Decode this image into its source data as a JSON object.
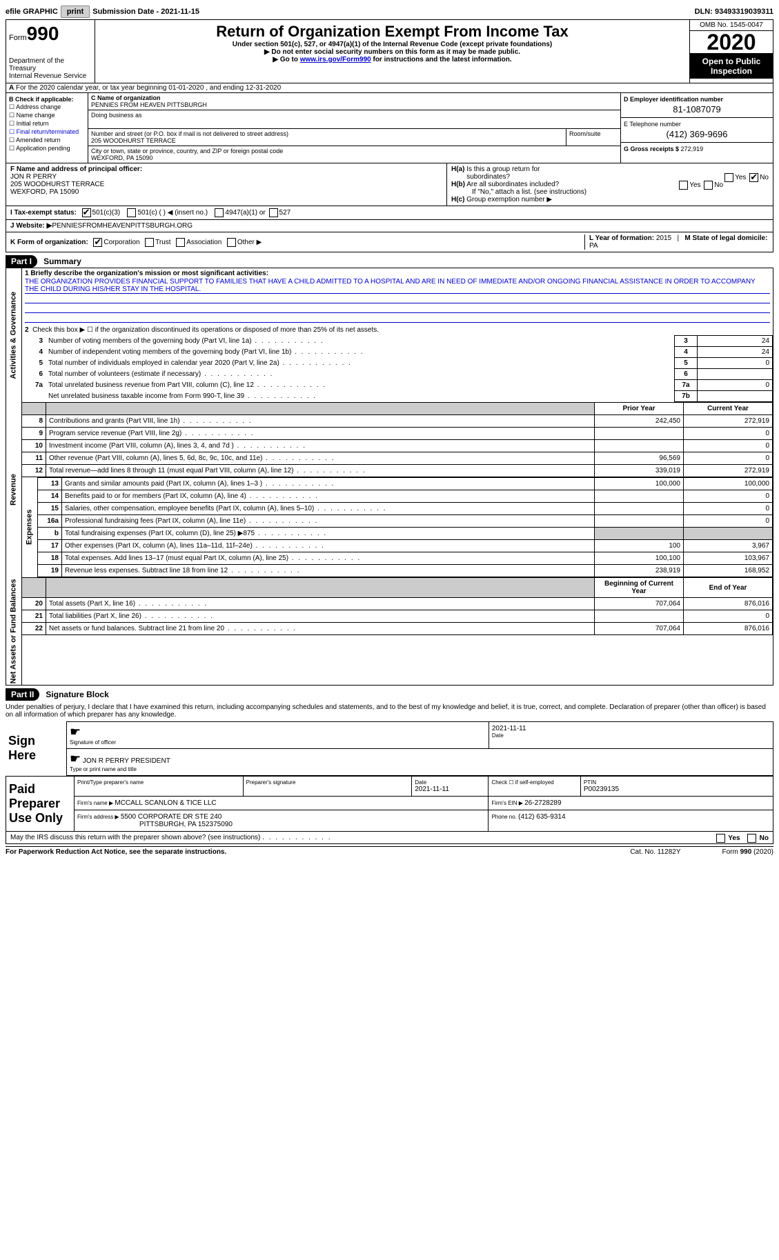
{
  "top": {
    "efile_label": "efile GRAPHIC",
    "print_btn": "print",
    "submission_label": "Submission Date - ",
    "submission_date": "2021-11-15",
    "dln_label": "DLN: ",
    "dln": "93493319039311"
  },
  "header": {
    "form_prefix": "Form",
    "form_num": "990",
    "dept1": "Department of the Treasury",
    "dept2": "Internal Revenue Service",
    "title": "Return of Organization Exempt From Income Tax",
    "sub1": "Under section 501(c), 527, or 4947(a)(1) of the Internal Revenue Code (except private foundations)",
    "sub2": "▶ Do not enter social security numbers on this form as it may be made public.",
    "sub3a": "▶ Go to ",
    "sub3_link": "www.irs.gov/Form990",
    "sub3b": " for instructions and the latest information.",
    "omb": "OMB No. 1545-0047",
    "year": "2020",
    "open_pub": "Open to Public Inspection"
  },
  "line_a": "For the 2020 calendar year, or tax year beginning 01-01-2020   , and ending 12-31-2020",
  "b": {
    "label": "B Check if applicable:",
    "opts": [
      "Address change",
      "Name change",
      "Initial return",
      "Final return/terminated",
      "Amended return",
      "Application pending"
    ]
  },
  "c": {
    "name_label": "C Name of organization",
    "name": "PENNIES FROM HEAVEN PITTSBURGH",
    "dba_label": "Doing business as",
    "addr_label": "Number and street (or P.O. box if mail is not delivered to street address)",
    "room_label": "Room/suite",
    "addr": "205 WOODHURST TERRACE",
    "city_label": "City or town, state or province, country, and ZIP or foreign postal code",
    "city": "WEXFORD, PA  15090"
  },
  "d": {
    "ein_label": "D Employer identification number",
    "ein": "81-1087079",
    "phone_label": "E Telephone number",
    "phone": "(412) 369-9696",
    "gross_label": "G Gross receipts $ ",
    "gross": "272,919"
  },
  "f": {
    "label": "F  Name and address of principal officer:",
    "name": "JON R PERRY",
    "addr1": "205 WOODHURST TERRACE",
    "addr2": "WEXFORD, PA  15090"
  },
  "h": {
    "a_label": "H(a)  Is this a group return for subordinates?",
    "b_label": "H(b)  Are all subordinates included?",
    "b_note": "If \"No,\" attach a list. (see instructions)",
    "c_label": "H(c)  Group exemption number ▶",
    "yes": "Yes",
    "no": "No"
  },
  "i": {
    "label": "I   Tax-exempt status:",
    "o1": "501(c)(3)",
    "o2": "501(c) (  ) ◀ (insert no.)",
    "o3": "4947(a)(1) or",
    "o4": "527"
  },
  "j": {
    "label": "J   Website: ▶ ",
    "val": "PENNIESFROMHEAVENPITTSBURGH.ORG"
  },
  "k": {
    "label": "K Form of organization:",
    "o1": "Corporation",
    "o2": "Trust",
    "o3": "Association",
    "o4": "Other ▶",
    "l_label": "L Year of formation: ",
    "l_val": "2015",
    "m_label": "M State of legal domicile: ",
    "m_val": "PA"
  },
  "part1": {
    "hdr": "Part I",
    "title": "Summary",
    "vert_labels": [
      "Activities & Governance",
      "Revenue",
      "Expenses",
      "Net Assets or Fund Balances"
    ],
    "line1_label": "1  Briefly describe the organization's mission or most significant activities:",
    "mission": "THE ORGANIZATION PROVIDES FINANCIAL SUPPORT TO FAMILIES THAT HAVE A CHILD ADMITTED TO A HOSPITAL AND ARE IN NEED OF IMMEDIATE AND/OR ONGOING FINANCIAL ASSISTANCE IN ORDER TO ACCOMPANY THE CHILD DURING HIS/HER STAY IN THE HOSPITAL.",
    "line2": "Check this box ▶ ☐  if the organization discontinued its operations or disposed of more than 25% of its net assets.",
    "gov_rows": [
      {
        "n": "3",
        "label": "Number of voting members of the governing body (Part VI, line 1a)",
        "box": "3",
        "val": "24"
      },
      {
        "n": "4",
        "label": "Number of independent voting members of the governing body (Part VI, line 1b)",
        "box": "4",
        "val": "24"
      },
      {
        "n": "5",
        "label": "Total number of individuals employed in calendar year 2020 (Part V, line 2a)",
        "box": "5",
        "val": "0"
      },
      {
        "n": "6",
        "label": "Total number of volunteers (estimate if necessary)",
        "box": "6",
        "val": ""
      },
      {
        "n": "7a",
        "label": "Total unrelated business revenue from Part VIII, column (C), line 12",
        "box": "7a",
        "val": "0"
      },
      {
        "n": "",
        "label": "Net unrelated business taxable income from Form 990-T, line 39",
        "box": "7b",
        "val": ""
      }
    ],
    "col_hdr_prior": "Prior Year",
    "col_hdr_curr": "Current Year",
    "rev_rows": [
      {
        "n": "8",
        "label": "Contributions and grants (Part VIII, line 1h)",
        "prior": "242,450",
        "curr": "272,919"
      },
      {
        "n": "9",
        "label": "Program service revenue (Part VIII, line 2g)",
        "prior": "",
        "curr": "0"
      },
      {
        "n": "10",
        "label": "Investment income (Part VIII, column (A), lines 3, 4, and 7d )",
        "prior": "",
        "curr": "0"
      },
      {
        "n": "11",
        "label": "Other revenue (Part VIII, column (A), lines 5, 6d, 8c, 9c, 10c, and 11e)",
        "prior": "96,569",
        "curr": "0"
      },
      {
        "n": "12",
        "label": "Total revenue—add lines 8 through 11 (must equal Part VIII, column (A), line 12)",
        "prior": "339,019",
        "curr": "272,919"
      }
    ],
    "exp_rows": [
      {
        "n": "13",
        "label": "Grants and similar amounts paid (Part IX, column (A), lines 1–3 )",
        "prior": "100,000",
        "curr": "100,000"
      },
      {
        "n": "14",
        "label": "Benefits paid to or for members (Part IX, column (A), line 4)",
        "prior": "",
        "curr": "0"
      },
      {
        "n": "15",
        "label": "Salaries, other compensation, employee benefits (Part IX, column (A), lines 5–10)",
        "prior": "",
        "curr": "0"
      },
      {
        "n": "16a",
        "label": "Professional fundraising fees (Part IX, column (A), line 11e)",
        "prior": "",
        "curr": "0"
      },
      {
        "n": "b",
        "label": "Total fundraising expenses (Part IX, column (D), line 25) ▶875",
        "prior": "GRAY",
        "curr": "GRAY"
      },
      {
        "n": "17",
        "label": "Other expenses (Part IX, column (A), lines 11a–11d, 11f–24e)",
        "prior": "100",
        "curr": "3,967"
      },
      {
        "n": "18",
        "label": "Total expenses. Add lines 13–17 (must equal Part IX, column (A), line 25)",
        "prior": "100,100",
        "curr": "103,967"
      },
      {
        "n": "19",
        "label": "Revenue less expenses. Subtract line 18 from line 12",
        "prior": "238,919",
        "curr": "168,952"
      }
    ],
    "net_hdr_begin": "Beginning of Current Year",
    "net_hdr_end": "End of Year",
    "net_rows": [
      {
        "n": "20",
        "label": "Total assets (Part X, line 16)",
        "prior": "707,064",
        "curr": "876,016"
      },
      {
        "n": "21",
        "label": "Total liabilities (Part X, line 26)",
        "prior": "",
        "curr": "0"
      },
      {
        "n": "22",
        "label": "Net assets or fund balances. Subtract line 21 from line 20",
        "prior": "707,064",
        "curr": "876,016"
      }
    ]
  },
  "part2": {
    "hdr": "Part II",
    "title": "Signature Block",
    "decl": "Under penalties of perjury, I declare that I have examined this return, including accompanying schedules and statements, and to the best of my knowledge and belief, it is true, correct, and complete. Declaration of preparer (other than officer) is based on all information of which preparer has any knowledge.",
    "sign_here": "Sign Here",
    "sig_officer": "Signature of officer",
    "sig_date": "2021-11-11",
    "date_lbl": "Date",
    "officer_name": "JON R PERRY PRESIDENT",
    "type_name_lbl": "Type or print name and title",
    "paid_prep": "Paid Preparer Use Only",
    "prep_name_lbl": "Print/Type preparer's name",
    "prep_sig_lbl": "Preparer's signature",
    "prep_date_lbl": "Date",
    "prep_date": "2021-11-11",
    "check_self": "Check ☐ if self-employed",
    "ptin_lbl": "PTIN",
    "ptin": "P00239135",
    "firm_name_lbl": "Firm's name    ▶ ",
    "firm_name": "MCCALL SCANLON & TICE LLC",
    "firm_ein_lbl": "Firm's EIN ▶ ",
    "firm_ein": "26-2728289",
    "firm_addr_lbl": "Firm's address ▶ ",
    "firm_addr1": "5500 CORPORATE DR STE 240",
    "firm_addr2": "PITTSBURGH, PA  152375090",
    "phone_lbl": "Phone no. ",
    "phone": "(412) 635-9314",
    "discuss": "May the IRS discuss this return with the preparer shown above? (see instructions)"
  },
  "footer": {
    "pra": "For Paperwork Reduction Act Notice, see the separate instructions.",
    "cat": "Cat. No. 11282Y",
    "form": "Form 990 (2020)"
  }
}
